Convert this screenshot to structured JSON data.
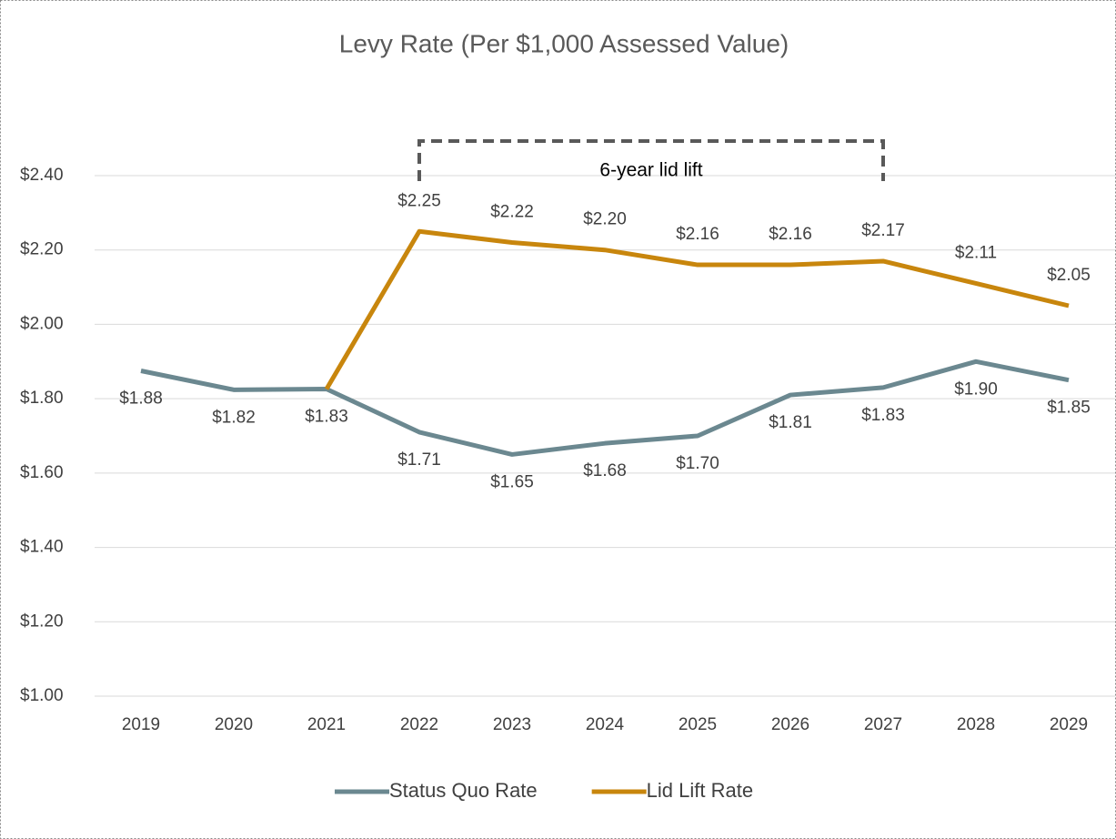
{
  "chart_data": {
    "type": "line",
    "title": "Levy Rate (Per $1,000 Assessed Value)",
    "categories": [
      "2019",
      "2020",
      "2021",
      "2022",
      "2023",
      "2024",
      "2025",
      "2026",
      "2027",
      "2028",
      "2029"
    ],
    "series": [
      {
        "name": "Status Quo Rate",
        "color": "#6b8890",
        "values": [
          1.875,
          1.824,
          1.826,
          1.71,
          1.65,
          1.68,
          1.7,
          1.81,
          1.83,
          1.9,
          1.85
        ],
        "value_labels": [
          "$1.88",
          "$1.82",
          "$1.83",
          "$1.71",
          "$1.65",
          "$1.68",
          "$1.70",
          "$1.81",
          "$1.83",
          "$1.90",
          "$1.85"
        ]
      },
      {
        "name": "Lid Lift Rate",
        "color": "#c8860d",
        "values": [
          null,
          null,
          1.826,
          2.25,
          2.22,
          2.2,
          2.16,
          2.16,
          2.17,
          2.11,
          2.05
        ],
        "value_labels": [
          null,
          null,
          null,
          "$2.25",
          "$2.22",
          "$2.20",
          "$2.16",
          "$2.16",
          "$2.17",
          "$2.11",
          "$2.05"
        ]
      }
    ],
    "ylim": [
      1.0,
      2.4
    ],
    "yticks": [
      {
        "value": 1.0,
        "label": "$1.00"
      },
      {
        "value": 1.2,
        "label": "$1.20"
      },
      {
        "value": 1.4,
        "label": "$1.40"
      },
      {
        "value": 1.6,
        "label": "$1.60"
      },
      {
        "value": 1.8,
        "label": "$1.80"
      },
      {
        "value": 2.0,
        "label": "$2.00"
      },
      {
        "value": 2.2,
        "label": "$2.20"
      },
      {
        "value": 2.4,
        "label": "$2.40"
      }
    ],
    "grid": true,
    "legend": "bottom",
    "annotations": [
      {
        "text": "6-year lid lift",
        "from": "2022",
        "to": "2027"
      }
    ]
  }
}
